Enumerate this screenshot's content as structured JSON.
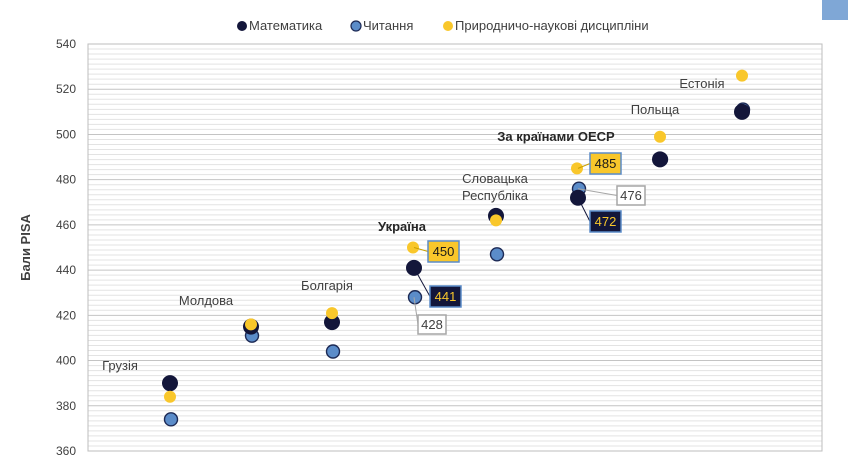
{
  "chart_data": {
    "type": "scatter",
    "title": "",
    "ylabel": "Бали PISA",
    "xlabel": "",
    "ylim": [
      360,
      540
    ],
    "yticks": [
      360,
      380,
      400,
      420,
      440,
      460,
      480,
      500,
      520,
      540
    ],
    "grid": true,
    "legend_position": "top",
    "categories": [
      "Грузія",
      "Молдова",
      "Болгарія",
      "Україна",
      "Словацька Республіка",
      "За країнами ОЕСР",
      "Польща",
      "Естонія"
    ],
    "category_labels": [
      {
        "lines": [
          "Грузія"
        ],
        "bold": false
      },
      {
        "lines": [
          "Молдова"
        ],
        "bold": false
      },
      {
        "lines": [
          "Болгарія"
        ],
        "bold": false
      },
      {
        "lines": [
          "Україна"
        ],
        "bold": true
      },
      {
        "lines": [
          "Словацька",
          "Республіка"
        ],
        "bold": false
      },
      {
        "lines": [
          "За країнами ОЕСР"
        ],
        "bold": true
      },
      {
        "lines": [
          "Польща"
        ],
        "bold": false
      },
      {
        "lines": [
          "Естонія"
        ],
        "bold": false
      }
    ],
    "series": [
      {
        "name": "Математика",
        "color": "#13163a",
        "values": [
          390,
          415,
          417,
          441,
          464,
          472,
          489,
          510
        ]
      },
      {
        "name": "Читання",
        "color": "#5b8cc9",
        "values": [
          374,
          411,
          404,
          428,
          447,
          476,
          489,
          511
        ]
      },
      {
        "name": "Природничо-наукові дисципліни",
        "color": "#f9c72b",
        "values": [
          384,
          416,
          421,
          450,
          462,
          485,
          499,
          526
        ]
      }
    ],
    "data_labels": [
      {
        "category": 3,
        "series": 2,
        "text": "450",
        "style": "gold"
      },
      {
        "category": 3,
        "series": 0,
        "text": "441",
        "style": "navy"
      },
      {
        "category": 3,
        "series": 1,
        "text": "428",
        "style": "white"
      },
      {
        "category": 5,
        "series": 2,
        "text": "485",
        "style": "gold"
      },
      {
        "category": 5,
        "series": 1,
        "text": "476",
        "style": "white"
      },
      {
        "category": 5,
        "series": 0,
        "text": "472",
        "style": "navy"
      }
    ]
  }
}
